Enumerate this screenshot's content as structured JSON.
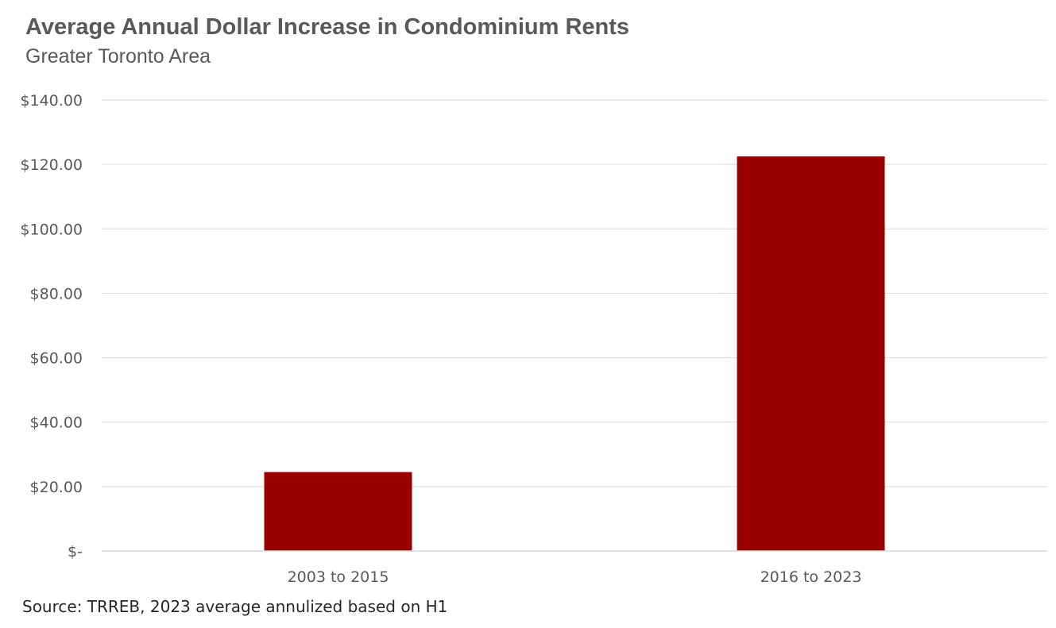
{
  "chart_data": {
    "type": "bar",
    "title": "Average Annual Dollar Increase in Condominium Rents",
    "subtitle": "Greater Toronto Area",
    "categories": [
      "2003 to 2015",
      "2016 to 2023"
    ],
    "values": [
      24.5,
      122.5
    ],
    "xlabel": "",
    "ylabel": "",
    "ylim": [
      0,
      140
    ],
    "yticks": [
      0,
      20,
      40,
      60,
      80,
      100,
      120,
      140
    ],
    "ytick_labels": [
      "$-",
      "$20.00",
      "$40.00",
      "$60.00",
      "$80.00",
      "$100.00",
      "$120.00",
      "$140.00"
    ],
    "grid": true,
    "bar_color": "#990000",
    "source": "Source: TRREB, 2023 average annulized based on H1"
  }
}
